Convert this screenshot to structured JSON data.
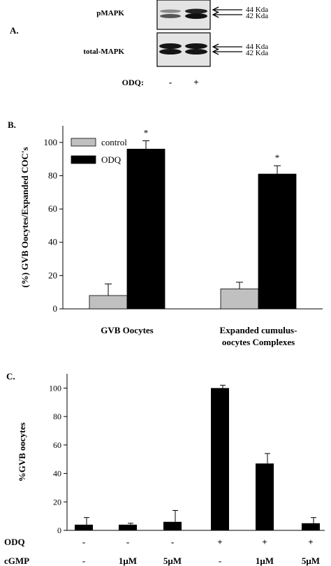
{
  "panel_a": {
    "label": "A.",
    "blot_top_label": "pMAPK",
    "blot_bottom_label": "total-MAPK",
    "bands": [
      "44 Kda",
      "42 Kda"
    ],
    "treatment_label": "ODQ:",
    "lanes": [
      "-",
      "+"
    ]
  },
  "chart_data": [
    {
      "type": "bar",
      "panel": "B.",
      "ylabel": "(%) GVB Oocytes/Expanded COC's",
      "ylim": [
        0,
        110
      ],
      "yticks": [
        0,
        20,
        40,
        60,
        80,
        100
      ],
      "categories": [
        "GVB Oocytes",
        "Expanded cumulus-oocytes Complexes"
      ],
      "category_lines": [
        [
          "GVB Oocytes"
        ],
        [
          "Expanded cumulus-",
          "oocytes Complexes"
        ]
      ],
      "series": [
        {
          "name": "control",
          "color": "#c0c0c0",
          "values": [
            8,
            12
          ],
          "errors": [
            7,
            4
          ]
        },
        {
          "name": "ODQ",
          "color": "#000000",
          "values": [
            96,
            81
          ],
          "errors": [
            5,
            5
          ]
        }
      ],
      "annotations": [
        "",
        "*"
      ],
      "significance": [
        [
          "",
          "*"
        ],
        [
          "",
          "*"
        ]
      ],
      "legend_position": "top-left"
    },
    {
      "type": "bar",
      "panel": "C.",
      "ylabel": "%GVB oocytes",
      "ylim": [
        0,
        110
      ],
      "yticks": [
        0,
        20,
        40,
        60,
        80,
        100
      ],
      "values": [
        4,
        4,
        6,
        100,
        47,
        5
      ],
      "errors": [
        5,
        1,
        8,
        2,
        7,
        4
      ],
      "color": "#000000",
      "conditions": [
        {
          "label": "ODQ",
          "values": [
            "-",
            "-",
            "-",
            "+",
            "+",
            "+"
          ]
        },
        {
          "label": "cGMP",
          "values": [
            "-",
            "1μM",
            "5μM",
            "-",
            "1μM",
            "5μM"
          ]
        }
      ]
    }
  ]
}
